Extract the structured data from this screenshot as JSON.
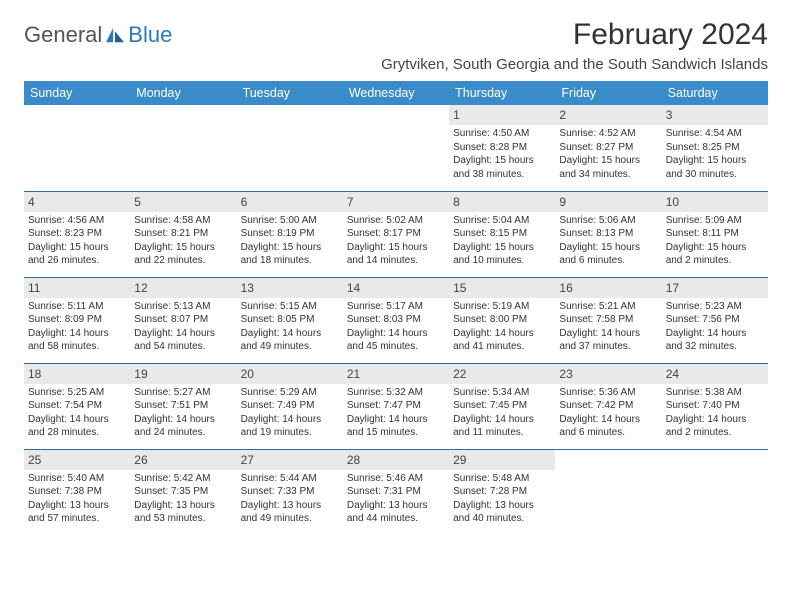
{
  "brand": {
    "general": "General",
    "blue": "Blue"
  },
  "title": "February 2024",
  "location": "Grytviken, South Georgia and the South Sandwich Islands",
  "dayHeaders": [
    "Sunday",
    "Monday",
    "Tuesday",
    "Wednesday",
    "Thursday",
    "Friday",
    "Saturday"
  ],
  "colors": {
    "header_bg": "#3a8bc9",
    "header_text": "#ffffff",
    "daynum_bg": "#e9e9e9",
    "rule": "#2a6ca3",
    "brand_blue": "#2a7ab8"
  },
  "weeks": [
    [
      {
        "day": "",
        "lines": [
          "",
          "",
          ""
        ]
      },
      {
        "day": "",
        "lines": [
          "",
          "",
          ""
        ]
      },
      {
        "day": "",
        "lines": [
          "",
          "",
          ""
        ]
      },
      {
        "day": "",
        "lines": [
          "",
          "",
          ""
        ]
      },
      {
        "day": "1",
        "lines": [
          "Sunrise: 4:50 AM",
          "Sunset: 8:28 PM",
          "Daylight: 15 hours and 38 minutes."
        ]
      },
      {
        "day": "2",
        "lines": [
          "Sunrise: 4:52 AM",
          "Sunset: 8:27 PM",
          "Daylight: 15 hours and 34 minutes."
        ]
      },
      {
        "day": "3",
        "lines": [
          "Sunrise: 4:54 AM",
          "Sunset: 8:25 PM",
          "Daylight: 15 hours and 30 minutes."
        ]
      }
    ],
    [
      {
        "day": "4",
        "lines": [
          "Sunrise: 4:56 AM",
          "Sunset: 8:23 PM",
          "Daylight: 15 hours and 26 minutes."
        ]
      },
      {
        "day": "5",
        "lines": [
          "Sunrise: 4:58 AM",
          "Sunset: 8:21 PM",
          "Daylight: 15 hours and 22 minutes."
        ]
      },
      {
        "day": "6",
        "lines": [
          "Sunrise: 5:00 AM",
          "Sunset: 8:19 PM",
          "Daylight: 15 hours and 18 minutes."
        ]
      },
      {
        "day": "7",
        "lines": [
          "Sunrise: 5:02 AM",
          "Sunset: 8:17 PM",
          "Daylight: 15 hours and 14 minutes."
        ]
      },
      {
        "day": "8",
        "lines": [
          "Sunrise: 5:04 AM",
          "Sunset: 8:15 PM",
          "Daylight: 15 hours and 10 minutes."
        ]
      },
      {
        "day": "9",
        "lines": [
          "Sunrise: 5:06 AM",
          "Sunset: 8:13 PM",
          "Daylight: 15 hours and 6 minutes."
        ]
      },
      {
        "day": "10",
        "lines": [
          "Sunrise: 5:09 AM",
          "Sunset: 8:11 PM",
          "Daylight: 15 hours and 2 minutes."
        ]
      }
    ],
    [
      {
        "day": "11",
        "lines": [
          "Sunrise: 5:11 AM",
          "Sunset: 8:09 PM",
          "Daylight: 14 hours and 58 minutes."
        ]
      },
      {
        "day": "12",
        "lines": [
          "Sunrise: 5:13 AM",
          "Sunset: 8:07 PM",
          "Daylight: 14 hours and 54 minutes."
        ]
      },
      {
        "day": "13",
        "lines": [
          "Sunrise: 5:15 AM",
          "Sunset: 8:05 PM",
          "Daylight: 14 hours and 49 minutes."
        ]
      },
      {
        "day": "14",
        "lines": [
          "Sunrise: 5:17 AM",
          "Sunset: 8:03 PM",
          "Daylight: 14 hours and 45 minutes."
        ]
      },
      {
        "day": "15",
        "lines": [
          "Sunrise: 5:19 AM",
          "Sunset: 8:00 PM",
          "Daylight: 14 hours and 41 minutes."
        ]
      },
      {
        "day": "16",
        "lines": [
          "Sunrise: 5:21 AM",
          "Sunset: 7:58 PM",
          "Daylight: 14 hours and 37 minutes."
        ]
      },
      {
        "day": "17",
        "lines": [
          "Sunrise: 5:23 AM",
          "Sunset: 7:56 PM",
          "Daylight: 14 hours and 32 minutes."
        ]
      }
    ],
    [
      {
        "day": "18",
        "lines": [
          "Sunrise: 5:25 AM",
          "Sunset: 7:54 PM",
          "Daylight: 14 hours and 28 minutes."
        ]
      },
      {
        "day": "19",
        "lines": [
          "Sunrise: 5:27 AM",
          "Sunset: 7:51 PM",
          "Daylight: 14 hours and 24 minutes."
        ]
      },
      {
        "day": "20",
        "lines": [
          "Sunrise: 5:29 AM",
          "Sunset: 7:49 PM",
          "Daylight: 14 hours and 19 minutes."
        ]
      },
      {
        "day": "21",
        "lines": [
          "Sunrise: 5:32 AM",
          "Sunset: 7:47 PM",
          "Daylight: 14 hours and 15 minutes."
        ]
      },
      {
        "day": "22",
        "lines": [
          "Sunrise: 5:34 AM",
          "Sunset: 7:45 PM",
          "Daylight: 14 hours and 11 minutes."
        ]
      },
      {
        "day": "23",
        "lines": [
          "Sunrise: 5:36 AM",
          "Sunset: 7:42 PM",
          "Daylight: 14 hours and 6 minutes."
        ]
      },
      {
        "day": "24",
        "lines": [
          "Sunrise: 5:38 AM",
          "Sunset: 7:40 PM",
          "Daylight: 14 hours and 2 minutes."
        ]
      }
    ],
    [
      {
        "day": "25",
        "lines": [
          "Sunrise: 5:40 AM",
          "Sunset: 7:38 PM",
          "Daylight: 13 hours and 57 minutes."
        ]
      },
      {
        "day": "26",
        "lines": [
          "Sunrise: 5:42 AM",
          "Sunset: 7:35 PM",
          "Daylight: 13 hours and 53 minutes."
        ]
      },
      {
        "day": "27",
        "lines": [
          "Sunrise: 5:44 AM",
          "Sunset: 7:33 PM",
          "Daylight: 13 hours and 49 minutes."
        ]
      },
      {
        "day": "28",
        "lines": [
          "Sunrise: 5:46 AM",
          "Sunset: 7:31 PM",
          "Daylight: 13 hours and 44 minutes."
        ]
      },
      {
        "day": "29",
        "lines": [
          "Sunrise: 5:48 AM",
          "Sunset: 7:28 PM",
          "Daylight: 13 hours and 40 minutes."
        ]
      },
      {
        "day": "",
        "lines": [
          "",
          "",
          ""
        ]
      },
      {
        "day": "",
        "lines": [
          "",
          "",
          ""
        ]
      }
    ]
  ]
}
